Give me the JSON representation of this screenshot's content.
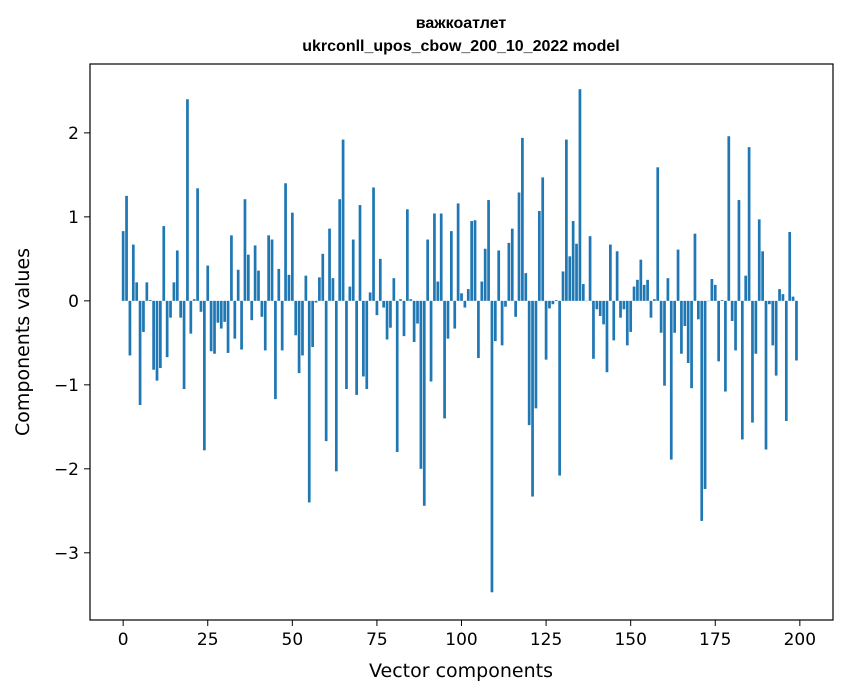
{
  "chart_data": {
    "type": "bar",
    "title": "важкоатлет",
    "subtitle": "ukrconll_upos_cbow_200_10_2022 model",
    "xlabel": "Vector components",
    "ylabel": "Components values",
    "xlim": [
      -9.8,
      209.8
    ],
    "ylim": [
      -3.8,
      2.82
    ],
    "xticks": [
      0,
      25,
      50,
      75,
      100,
      125,
      150,
      175,
      200
    ],
    "yticks": [
      -3,
      -2,
      -1,
      0,
      1,
      2
    ],
    "bar_color": "#1f77b4",
    "grid": false,
    "values": [
      0.83,
      1.25,
      -0.65,
      0.67,
      0.22,
      -1.24,
      -0.37,
      0.22,
      0.01,
      -0.82,
      -0.95,
      -0.8,
      0.89,
      -0.67,
      -0.2,
      0.22,
      0.6,
      -0.2,
      -1.05,
      2.4,
      -0.39,
      0.02,
      1.34,
      -0.13,
      -1.78,
      0.42,
      -0.6,
      -0.63,
      -0.26,
      -0.33,
      -0.25,
      -0.62,
      0.78,
      -0.45,
      0.37,
      -0.58,
      1.21,
      0.55,
      -0.23,
      0.66,
      0.36,
      -0.19,
      -0.59,
      0.78,
      0.73,
      -1.17,
      0.38,
      -0.59,
      1.4,
      0.31,
      1.05,
      -0.41,
      -0.86,
      -0.65,
      0.3,
      -2.4,
      -0.55,
      -0.02,
      0.28,
      0.56,
      -1.67,
      0.86,
      0.27,
      -2.03,
      1.21,
      1.92,
      -1.05,
      0.17,
      0.73,
      -1.12,
      1.14,
      -0.9,
      -1.05,
      0.1,
      1.35,
      -0.17,
      0.5,
      -0.08,
      -0.46,
      -0.32,
      0.27,
      -1.8,
      0.02,
      -0.42,
      1.09,
      0.02,
      -0.49,
      -0.27,
      -2.0,
      -2.44,
      0.73,
      -0.96,
      1.04,
      0.23,
      1.04,
      -1.4,
      -0.45,
      0.83,
      -0.33,
      1.16,
      0.09,
      -0.08,
      0.14,
      0.95,
      0.96,
      -0.68,
      0.23,
      0.62,
      1.2,
      -3.47,
      -0.48,
      0.6,
      -0.53,
      -0.07,
      0.69,
      0.86,
      -0.19,
      1.29,
      1.94,
      0.33,
      -1.48,
      -2.33,
      -1.28,
      1.07,
      1.47,
      -0.7,
      -0.09,
      -0.04,
      0.01,
      -2.08,
      0.35,
      1.92,
      0.53,
      0.95,
      0.68,
      2.52,
      0.2,
      0.0,
      0.77,
      -0.69,
      -0.1,
      -0.18,
      -0.28,
      -0.85,
      0.67,
      -0.47,
      0.59,
      -0.2,
      -0.1,
      -0.53,
      -0.37,
      0.17,
      0.25,
      0.49,
      0.19,
      0.25,
      -0.2,
      0.02,
      1.59,
      -0.38,
      -1.01,
      0.27,
      -1.89,
      -0.38,
      0.61,
      -0.63,
      -0.3,
      -0.74,
      -1.04,
      0.8,
      -0.22,
      -2.62,
      -2.24,
      0.0,
      0.26,
      0.19,
      -0.72,
      0.01,
      -1.08,
      1.96,
      -0.24,
      -0.59,
      1.2,
      -1.65,
      0.3,
      1.83,
      -1.45,
      -0.63,
      0.97,
      0.59,
      -1.77,
      -0.04,
      -0.53,
      -0.89,
      0.14,
      0.08,
      -1.43,
      0.82,
      0.05,
      -0.71
    ]
  }
}
